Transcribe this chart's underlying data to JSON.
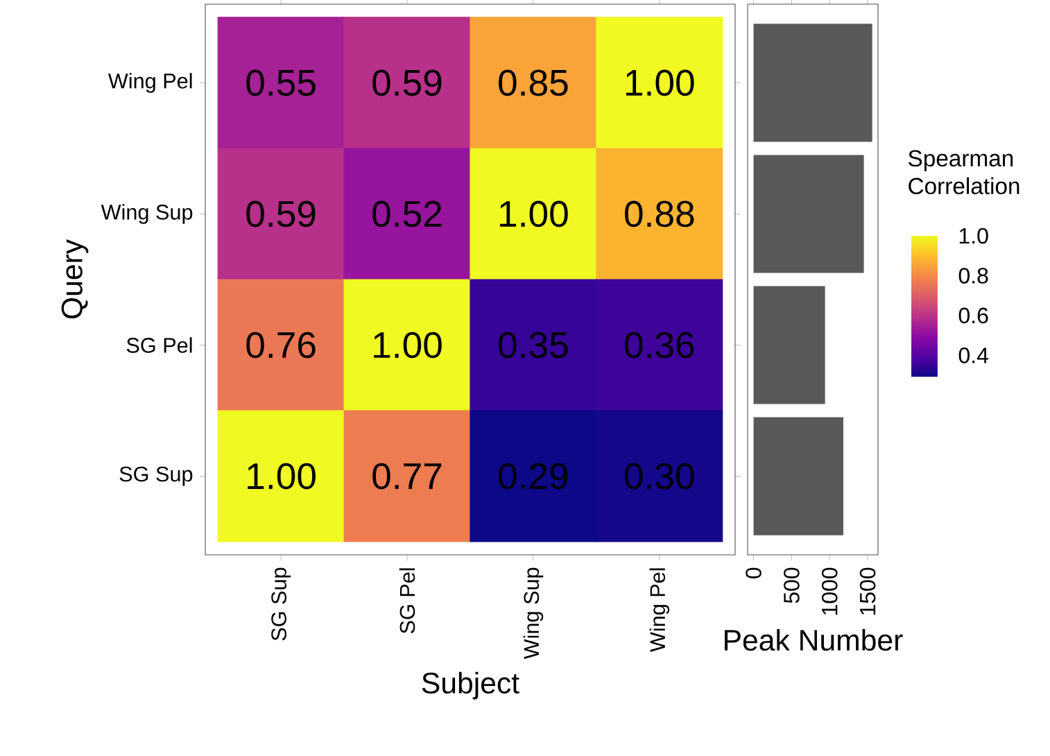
{
  "chart_data": [
    {
      "type": "heatmap",
      "xlabel": "Subject",
      "ylabel": "Query",
      "clabel": "Spearman Correlation",
      "categories": [
        "SG Sup",
        "SG Pel",
        "Wing Sup",
        "Wing Pel"
      ],
      "y_categories": [
        "Wing Pel",
        "Wing Sup",
        "SG Pel",
        "SG Sup"
      ],
      "cells": [
        [
          0.55,
          0.59,
          0.85,
          1.0
        ],
        [
          0.59,
          0.52,
          1.0,
          0.88
        ],
        [
          0.76,
          1.0,
          0.35,
          0.36
        ],
        [
          1.0,
          0.77,
          0.29,
          0.3
        ]
      ],
      "cell_labels": [
        [
          "0.55",
          "0.59",
          "0.85",
          "1.00"
        ],
        [
          "0.59",
          "0.52",
          "1.00",
          "0.88"
        ],
        [
          "0.76",
          "1.00",
          "0.35",
          "0.36"
        ],
        [
          "1.00",
          "0.77",
          "0.29",
          "0.30"
        ]
      ],
      "clim": [
        0.29,
        1
      ],
      "cticks": [
        0.4,
        0.6,
        0.8,
        {
          "value": 1,
          "label": "1.0"
        }
      ]
    },
    {
      "type": "bar",
      "orientation": "horizontal",
      "xlabel": "Peak Number",
      "categories": [
        null,
        null,
        null,
        null
      ],
      "values": [
        1560,
        1450,
        940,
        1180
      ],
      "color": "#595959",
      "xlim": [
        -78,
        1636
      ],
      "xticks": [
        0,
        500,
        1000,
        1500
      ],
      "tick_labels": "x"
    }
  ]
}
